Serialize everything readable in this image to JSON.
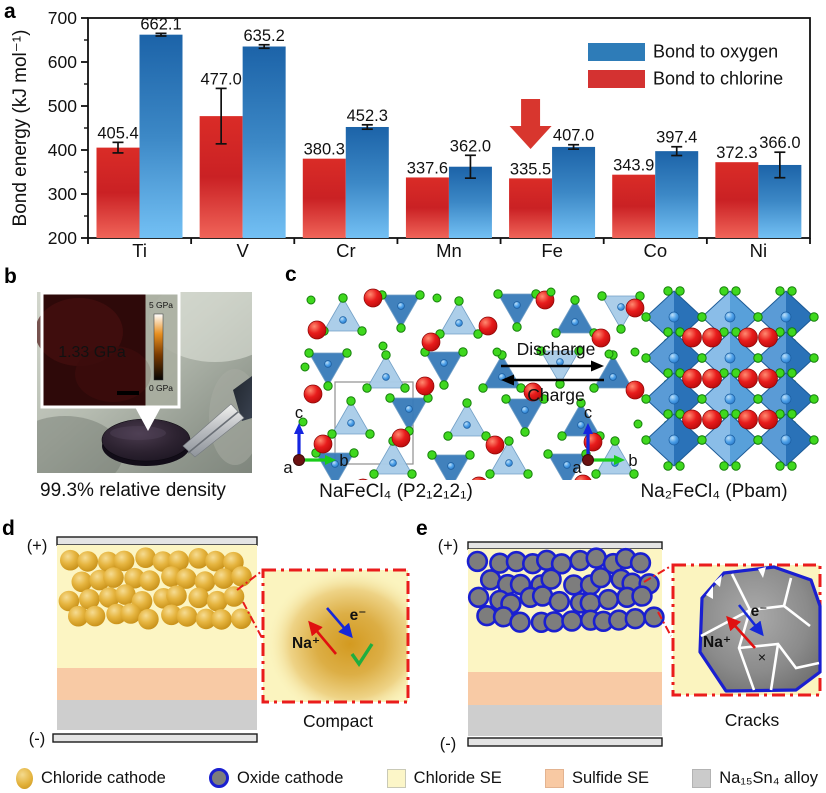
{
  "figure": {
    "panel_letters": {
      "a": "a",
      "b": "b",
      "c": "c",
      "d": "d",
      "e": "e"
    }
  },
  "chart_data": {
    "type": "bar",
    "title": "",
    "xlabel": "",
    "ylabel": "Bond energy (kJ mol⁻¹)",
    "ylim": [
      200,
      700
    ],
    "yticks": [
      200,
      300,
      400,
      500,
      600,
      700
    ],
    "categories": [
      "Ti",
      "V",
      "Cr",
      "Mn",
      "Fe",
      "Co",
      "Ni"
    ],
    "series": [
      {
        "name": "Bond to chlorine",
        "colors": [
          "#da2c27",
          "#f06459"
        ],
        "values": [
          405.4,
          477.0,
          380.3,
          337.6,
          335.5,
          343.9,
          372.3
        ],
        "errors": [
          12,
          63,
          0,
          0,
          0,
          0,
          0
        ]
      },
      {
        "name": "Bond to oxygen",
        "colors": [
          "#1c63a8",
          "#73c0f4"
        ],
        "values": [
          662.1,
          635.2,
          452.3,
          362.0,
          407.0,
          397.4,
          366.0
        ],
        "errors": [
          3,
          4,
          5,
          26,
          5,
          10,
          29
        ]
      }
    ],
    "legend": [
      {
        "label": "Bond to oxygen",
        "color": "#2e7cb8"
      },
      {
        "label": "Bond to chlorine",
        "color": "#d43231"
      }
    ],
    "legend_position": "top-right",
    "grid": false,
    "annotation_arrow": {
      "category": "Fe",
      "series": 0,
      "color": "#d8362e"
    }
  },
  "panel_b": {
    "inset_value": "1.33 GPa",
    "scale_max": "5 GPa",
    "scale_min": "0 GPa",
    "caption": "99.3% relative density"
  },
  "panel_c": {
    "discharge": "Discharge",
    "charge": "Charge",
    "left_caption": "NaFeCl₄ (P2₁2₁2₁)",
    "right_caption": "Na₂FeCl₄ (Pbam)",
    "axes": {
      "a": "a",
      "b": "b",
      "c": "c"
    }
  },
  "panel_d": {
    "plus": "(+)",
    "minus": "(-)",
    "na_label": "Na⁺",
    "e_label": "e⁻",
    "caption": "Compact"
  },
  "panel_e": {
    "plus": "(+)",
    "minus": "(-)",
    "na_label": "Na⁺",
    "e_label": "e⁻",
    "cross_label": "×",
    "caption": "Cracks"
  },
  "bottom_legend": {
    "items": [
      {
        "label": "Chloride cathode"
      },
      {
        "label": "Oxide cathode"
      },
      {
        "label": "Chloride SE"
      },
      {
        "label": "Sulfide SE"
      },
      {
        "label": "Na₁₅Sn₄ alloy"
      }
    ]
  }
}
